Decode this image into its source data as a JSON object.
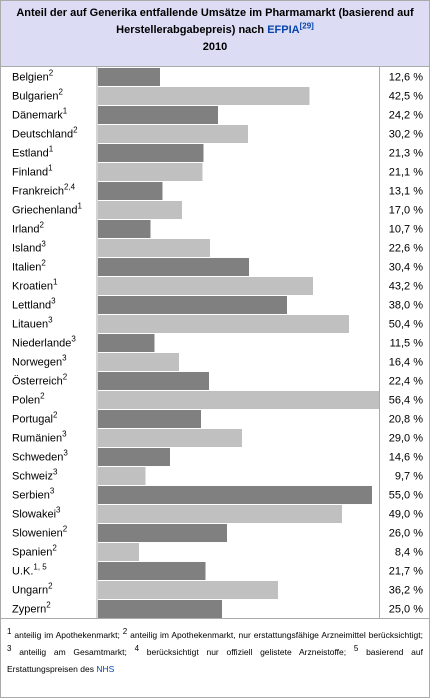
{
  "chart_data": {
    "type": "bar",
    "orientation": "horizontal",
    "title": "Anteil der auf Generika entfallende Umsätze im Pharmamarkt (basierend auf Herstellerabgabepreis) nach",
    "source": "EFPIA",
    "reference": "[29]",
    "subtitle": "2010",
    "categories": [
      "Belgien",
      "Bulgarien",
      "Dänemark",
      "Deutschland",
      "Estland",
      "Finland",
      "Frankreich",
      "Griechenland",
      "Irland",
      "Island",
      "Italien",
      "Kroatien",
      "Lettland",
      "Litauen",
      "Niederlande",
      "Norwegen",
      "Österreich",
      "Polen",
      "Portugal",
      "Rumänien",
      "Schweden",
      "Schweiz",
      "Serbien",
      "Slowakei",
      "Slowenien",
      "Spanien",
      "U.K.",
      "Ungarn",
      "Zypern"
    ],
    "notes": [
      "2",
      "2",
      "1",
      "2",
      "1",
      "1",
      "2,4",
      "1",
      "2",
      "3",
      "2",
      "1",
      "3",
      "3",
      "3",
      "3",
      "2",
      "2",
      "2",
      "3",
      "3",
      "3",
      "3",
      "3",
      "2",
      "2",
      "1, 5",
      "2",
      "2"
    ],
    "values": [
      12.6,
      42.5,
      24.2,
      30.2,
      21.3,
      21.1,
      13.1,
      17.0,
      10.7,
      22.6,
      30.4,
      43.2,
      38.0,
      50.4,
      11.5,
      16.4,
      22.4,
      56.4,
      20.8,
      29.0,
      14.6,
      9.7,
      55.0,
      49.0,
      26.0,
      8.4,
      21.7,
      36.2,
      25.0
    ],
    "value_labels": [
      "12,6 %",
      "42,5 %",
      "24,2 %",
      "30,2 %",
      "21,3 %",
      "21,1 %",
      "13,1 %",
      "17,0 %",
      "10,7 %",
      "22,6 %",
      "30,4 %",
      "43,2 %",
      "38,0 %",
      "50,4 %",
      "11,5 %",
      "16,4 %",
      "22,4 %",
      "56,4 %",
      "20,8 %",
      "29,0 %",
      "14,6 %",
      "9,7 %",
      "55,0 %",
      "49,0 %",
      "26,0 %",
      "8,4 %",
      "21,7 %",
      "36,2 %",
      "25,0 %"
    ],
    "colors": [
      "#808080",
      "#c0c0c0"
    ],
    "footnotes": [
      {
        "mark": "1",
        "text": "anteilig im Apothekenmarkt;"
      },
      {
        "mark": "2",
        "text": "anteilig im Apothekenmarkt, nur erstattungsfähige Arzneimittel berücksichtigt;"
      },
      {
        "mark": "3",
        "text": "anteilig am Gesamtmarkt;"
      },
      {
        "mark": "4",
        "text": "berücksichtigt nur offiziell gelistete Arzneistoffe;"
      },
      {
        "mark": "5",
        "text": "basierend auf Erstattungspreisen des",
        "link": "NHS"
      }
    ]
  }
}
